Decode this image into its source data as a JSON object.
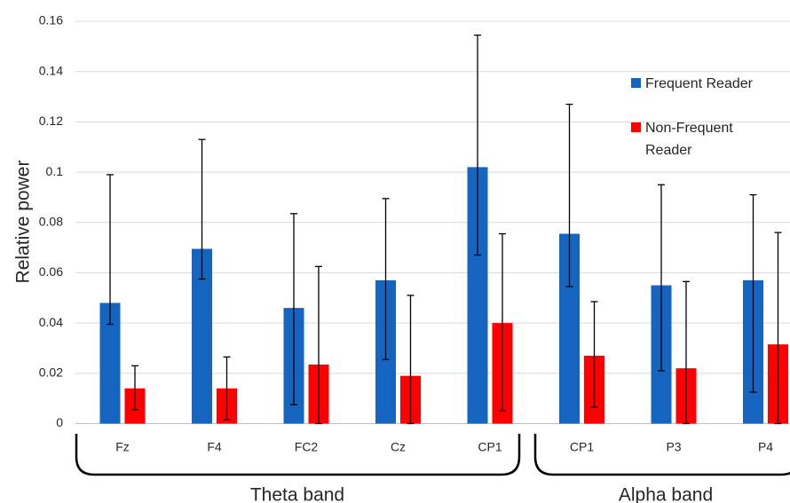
{
  "chart_data": {
    "type": "bar",
    "title": "",
    "xlabel": "",
    "ylabel": "Relative power",
    "ylim": [
      0,
      0.16
    ],
    "yticks": [
      "0",
      "0.02",
      "0.04",
      "0.06",
      "0.08",
      "0.1",
      "0.12",
      "0.14",
      "0.16"
    ],
    "grid": true,
    "legend_position": "right",
    "categories": [
      "Fz",
      "F4",
      "FC2",
      "Cz",
      "CP1",
      "CP1",
      "P3",
      "P4"
    ],
    "groups": [
      {
        "label": "Theta band",
        "categories": [
          "Fz",
          "F4",
          "FC2",
          "Cz",
          "CP1"
        ]
      },
      {
        "label": "Alpha band",
        "categories": [
          "CP1",
          "P3",
          "P4"
        ]
      }
    ],
    "series": [
      {
        "name": "Frequent Reader",
        "color": "#1565c0",
        "values": [
          0.048,
          0.0695,
          0.046,
          0.057,
          0.102,
          0.0755,
          0.055,
          0.057
        ],
        "error_low": [
          0.0395,
          0.0575,
          0.0075,
          0.0255,
          0.067,
          0.0545,
          0.021,
          0.0125
        ],
        "error_high": [
          0.099,
          0.113,
          0.0835,
          0.0895,
          0.1545,
          0.127,
          0.095,
          0.091
        ]
      },
      {
        "name": "Non-Frequent Reader",
        "name_lines": [
          "Non-Frequent",
          "Reader"
        ],
        "color": "#ff0000",
        "values": [
          0.014,
          0.014,
          0.0235,
          0.019,
          0.04,
          0.027,
          0.022,
          0.0315
        ],
        "error_low": [
          0.0055,
          0.0015,
          0.0,
          0.0,
          0.005,
          0.0065,
          0.0,
          0.0
        ],
        "error_high": [
          0.023,
          0.0265,
          0.0625,
          0.051,
          0.0755,
          0.0485,
          0.0565,
          0.076
        ]
      }
    ]
  }
}
